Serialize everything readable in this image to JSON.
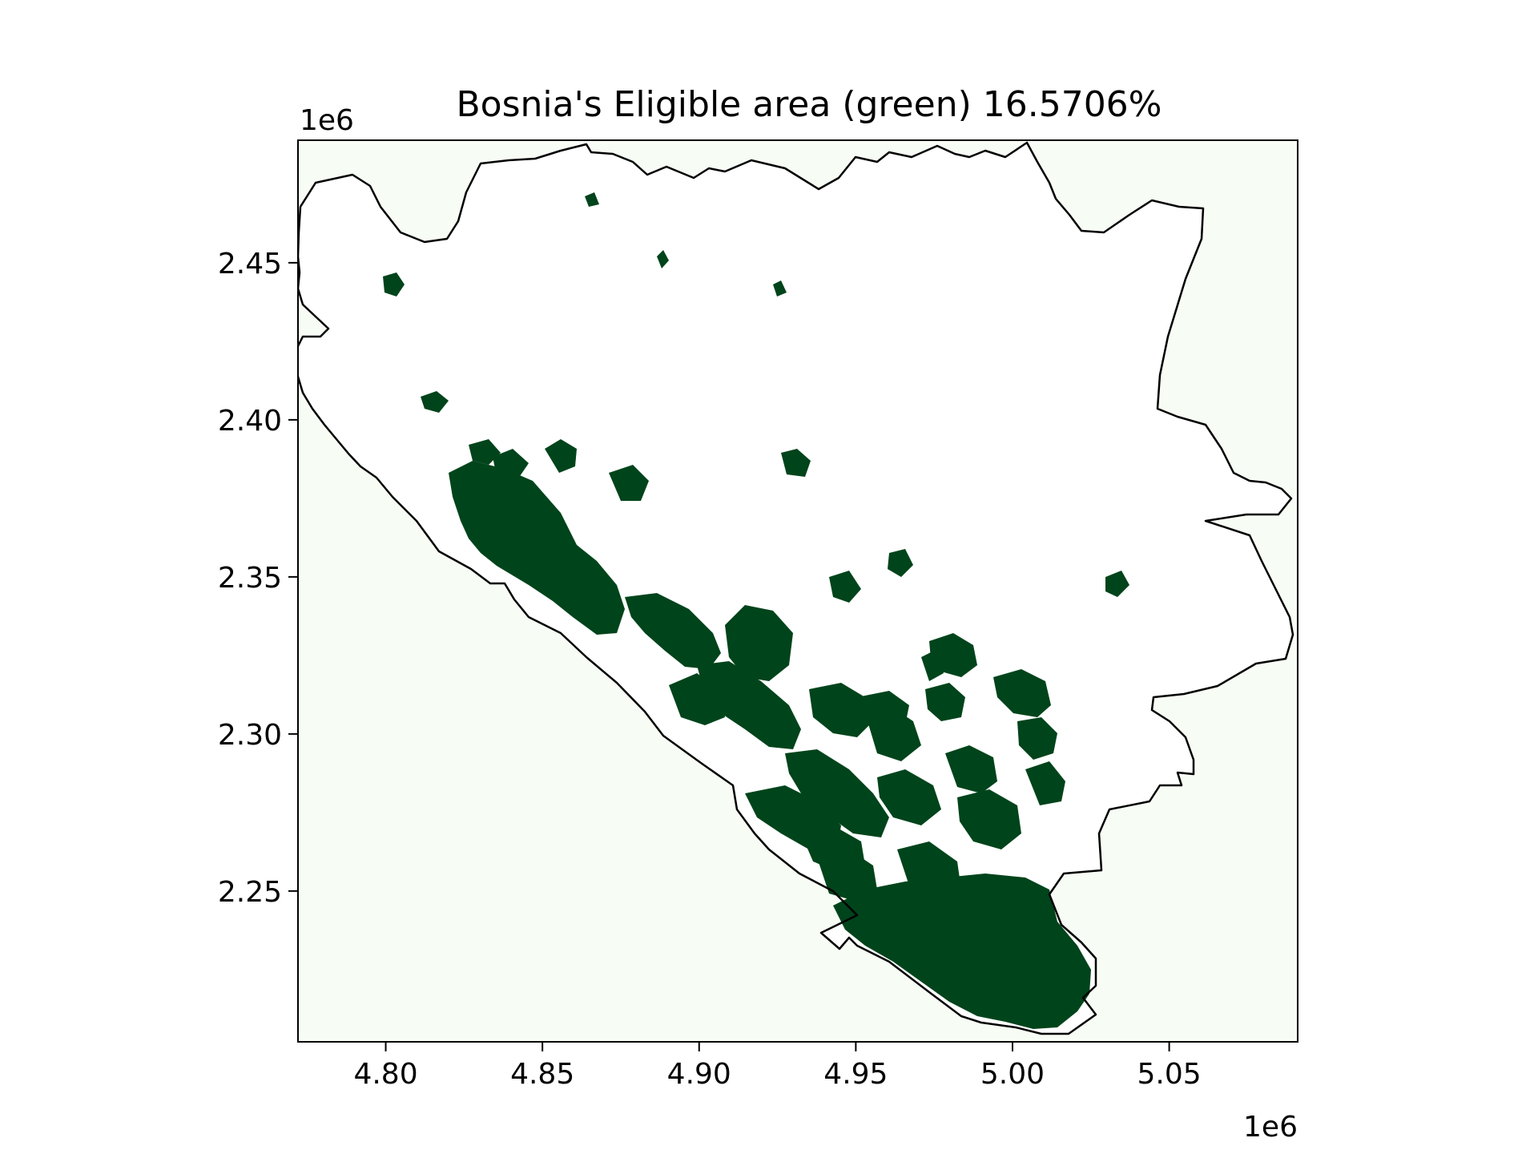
{
  "figure": {
    "title": "Bosnia's Eligible area (green) 16.5706%",
    "x_offset_label": "1e6",
    "y_offset_label": "1e6"
  },
  "colors": {
    "background": "#f7fcf5",
    "eligible": "#00441b",
    "border": "#000000"
  },
  "chart_data": {
    "type": "map",
    "title": "Bosnia's Eligible area (green) 16.5706%",
    "xlim": [
      4.772,
      5.091
    ],
    "ylim": [
      2.202,
      2.489
    ],
    "x_ticks": [
      {
        "value": 4.8,
        "label": "4.80"
      },
      {
        "value": 4.85,
        "label": "4.85"
      },
      {
        "value": 4.9,
        "label": "4.90"
      },
      {
        "value": 4.95,
        "label": "4.95"
      },
      {
        "value": 5.0,
        "label": "5.00"
      },
      {
        "value": 5.05,
        "label": "5.05"
      }
    ],
    "y_ticks": [
      {
        "value": 2.25,
        "label": "2.25"
      },
      {
        "value": 2.3,
        "label": "2.30"
      },
      {
        "value": 2.35,
        "label": "2.35"
      },
      {
        "value": 2.4,
        "label": "2.40"
      },
      {
        "value": 2.45,
        "label": "2.45"
      }
    ],
    "eligible_share_percent": 16.5706,
    "grid": false
  }
}
